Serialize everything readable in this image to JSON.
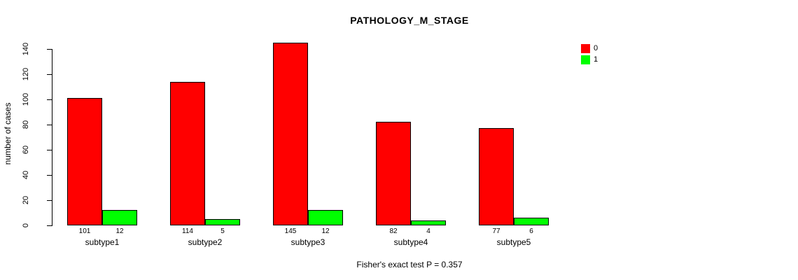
{
  "title": "PATHOLOGY_M_STAGE",
  "footer": "Fisher's exact test P = 0.357",
  "chart_data": {
    "type": "bar",
    "title": "PATHOLOGY_M_STAGE",
    "xlabel": "",
    "ylabel": "number of cases",
    "categories": [
      "subtype1",
      "subtype2",
      "subtype3",
      "subtype4",
      "subtype5"
    ],
    "series": [
      {
        "name": "0",
        "color": "#FF0000",
        "values": [
          101,
          114,
          145,
          82,
          77
        ]
      },
      {
        "name": "1",
        "color": "#00FF00",
        "values": [
          12,
          5,
          12,
          4,
          6
        ]
      }
    ],
    "bar_value_labels": true,
    "ylim": [
      0,
      140
    ],
    "yticks": [
      0,
      20,
      40,
      60,
      80,
      100,
      120,
      140
    ],
    "grid": false,
    "legend_position": "top-right",
    "annotation": "Fisher's exact test P = 0.357"
  },
  "legend": {
    "items": [
      {
        "label": "0",
        "color": "#FF0000"
      },
      {
        "label": "1",
        "color": "#00FF00"
      }
    ]
  }
}
